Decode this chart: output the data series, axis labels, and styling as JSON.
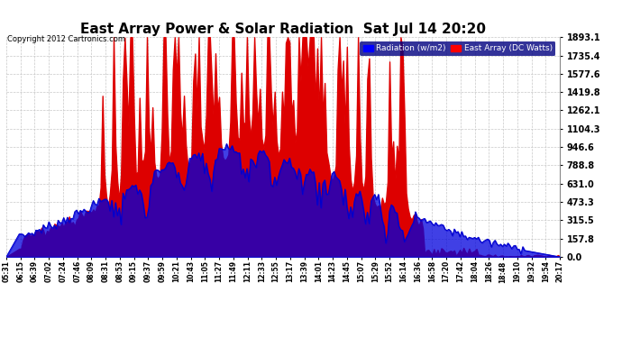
{
  "title": "East Array Power & Solar Radiation  Sat Jul 14 20:20",
  "copyright": "Copyright 2012 Cartronics.com",
  "legend_labels": [
    "Radiation (w/m2)",
    "East Array (DC Watts)"
  ],
  "ymax": 1893.1,
  "yticks": [
    0.0,
    157.8,
    315.5,
    473.3,
    631.0,
    788.8,
    946.6,
    1104.3,
    1262.1,
    1419.8,
    1577.6,
    1735.4,
    1893.1
  ],
  "background_color": "#ffffff",
  "grid_color": "#c8c8c8",
  "n_points": 300,
  "tick_labels": [
    "05:31",
    "06:15",
    "06:39",
    "07:02",
    "07:24",
    "07:46",
    "08:09",
    "08:31",
    "08:53",
    "09:15",
    "09:37",
    "09:59",
    "10:21",
    "10:43",
    "11:05",
    "11:27",
    "11:49",
    "12:11",
    "12:33",
    "12:55",
    "13:17",
    "13:39",
    "14:01",
    "14:23",
    "14:45",
    "15:07",
    "15:29",
    "15:52",
    "16:14",
    "16:36",
    "16:58",
    "17:20",
    "17:42",
    "18:04",
    "18:26",
    "18:48",
    "19:10",
    "19:32",
    "19:54",
    "20:17"
  ]
}
